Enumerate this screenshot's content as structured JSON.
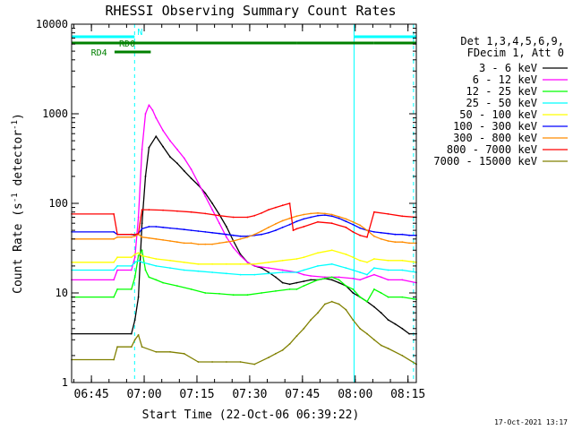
{
  "chart_data": {
    "type": "line",
    "title": "RHESSI Observing Summary Count Rates",
    "xlabel": "Start Time (22-Oct-06 06:39:22)",
    "ylabel": "Count Rate (s⁻¹ detector⁻¹)",
    "ylabel_parts": {
      "a": "Count Rate (s",
      "b": "-1",
      "c": " detector",
      "d": "-1",
      "e": ")"
    },
    "y_scale": "log",
    "ylim": [
      1,
      10000
    ],
    "xlim_minutes": [
      0,
      98
    ],
    "x_tick_labels": [
      "06:45",
      "07:00",
      "07:15",
      "07:30",
      "07:45",
      "08:00",
      "08:15"
    ],
    "x_tick_minutes": [
      5.63,
      20.63,
      35.63,
      50.63,
      65.63,
      80.63,
      95.63
    ],
    "y_tick_labels": [
      "1",
      "10",
      "100",
      "1000",
      "10000"
    ],
    "y_tick_values": [
      1,
      10,
      100,
      1000,
      10000
    ],
    "legend_header": [
      "Det 1,3,4,5,6,9,",
      "FDecim 1, Att 0"
    ],
    "legend_placement": "right",
    "series": [
      {
        "name": "3 - 6 keV",
        "color": "#000000",
        "x": [
          0,
          17,
          18,
          19,
          20,
          21,
          22,
          24,
          26,
          28,
          30,
          32,
          34,
          36,
          38,
          40,
          42,
          44,
          46,
          48,
          50,
          52,
          54,
          56,
          58,
          60,
          62,
          64,
          66,
          68,
          70,
          72,
          74,
          76,
          78,
          80,
          82,
          84,
          86,
          88,
          90,
          92,
          94,
          96,
          98
        ],
        "y": [
          3.5,
          3.5,
          5,
          9,
          60,
          200,
          420,
          560,
          430,
          330,
          280,
          230,
          190,
          160,
          130,
          100,
          75,
          55,
          38,
          27,
          22,
          20,
          19,
          17,
          15,
          13,
          12.5,
          13,
          13.5,
          14,
          14,
          14.5,
          14,
          13,
          12,
          10,
          9,
          8,
          7,
          6,
          5,
          4.5,
          4,
          3.5,
          3.5
        ]
      },
      {
        "name": "6 - 12 keV",
        "color": "#ff00ff",
        "x": [
          0,
          12,
          13,
          17,
          18,
          19,
          20,
          21,
          22,
          23,
          24,
          26,
          28,
          30,
          32,
          34,
          36,
          38,
          40,
          42,
          44,
          46,
          48,
          50,
          52,
          56,
          60,
          64,
          66,
          68,
          72,
          76,
          80,
          82,
          84,
          86,
          88,
          90,
          94,
          98
        ],
        "y": [
          14,
          14,
          18,
          18,
          25,
          70,
          400,
          1000,
          1250,
          1100,
          900,
          650,
          500,
          400,
          320,
          240,
          170,
          120,
          85,
          60,
          42,
          32,
          26,
          22,
          20,
          19,
          18,
          17,
          16,
          15.5,
          15,
          15,
          14.5,
          14,
          15,
          16,
          15,
          14,
          14,
          13
        ]
      },
      {
        "name": "12 - 25 keV",
        "color": "#00ff00",
        "x": [
          0,
          12,
          13,
          17,
          18,
          19,
          20,
          21,
          22,
          24,
          26,
          30,
          34,
          38,
          42,
          46,
          50,
          54,
          58,
          62,
          64,
          66,
          70,
          74,
          76,
          78,
          80,
          82,
          84,
          86,
          88,
          90,
          94,
          98
        ],
        "y": [
          9,
          9,
          11,
          11,
          15,
          26,
          30,
          18,
          15,
          14,
          13,
          12,
          11,
          10,
          9.8,
          9.5,
          9.5,
          10,
          10.5,
          11,
          11,
          12,
          14,
          15,
          14,
          12,
          11,
          9,
          8,
          11,
          10,
          9,
          9,
          8.5
        ]
      },
      {
        "name": "25 - 50 keV",
        "color": "#00ffff",
        "x": [
          0,
          12,
          13,
          17,
          18,
          19,
          20,
          22,
          24,
          28,
          32,
          36,
          40,
          44,
          48,
          52,
          56,
          60,
          64,
          66,
          70,
          74,
          78,
          80,
          82,
          84,
          86,
          90,
          94,
          98
        ],
        "y": [
          18,
          18,
          20,
          20,
          22,
          23,
          22,
          21,
          20,
          19,
          18,
          17.5,
          17,
          16.5,
          16,
          16,
          16.5,
          17,
          17,
          18,
          20,
          21,
          19,
          18,
          17,
          16,
          19,
          18,
          18,
          17
        ]
      },
      {
        "name": "50 - 100 keV",
        "color": "#ffff00",
        "x": [
          0,
          12,
          13,
          17,
          18,
          19,
          20,
          22,
          24,
          28,
          32,
          36,
          40,
          44,
          48,
          52,
          56,
          60,
          64,
          66,
          70,
          74,
          78,
          80,
          82,
          84,
          86,
          90,
          94,
          98
        ],
        "y": [
          22,
          22,
          25,
          25,
          27,
          28,
          26,
          25,
          24,
          23,
          22,
          21,
          21,
          21,
          21,
          21,
          22,
          23,
          24,
          25,
          28,
          30,
          27,
          25,
          23,
          22,
          24,
          23,
          23,
          22
        ]
      },
      {
        "name": "100 - 300 keV",
        "color": "#0000ff",
        "x": [
          0,
          12,
          13,
          17,
          18,
          19,
          20,
          22,
          24,
          26,
          28,
          30,
          32,
          34,
          36,
          38,
          40,
          42,
          44,
          46,
          48,
          50,
          52,
          54,
          56,
          58,
          60,
          62,
          64,
          66,
          68,
          70,
          72,
          74,
          76,
          78,
          80,
          82,
          84,
          86,
          88,
          90,
          92,
          94,
          96,
          98
        ],
        "y": [
          48,
          48,
          45,
          45,
          44,
          46,
          52,
          55,
          55,
          54,
          53,
          52,
          51,
          50,
          49,
          48,
          47,
          46,
          45,
          44,
          43,
          43,
          44,
          45,
          47,
          50,
          54,
          58,
          63,
          67,
          70,
          73,
          74,
          72,
          68,
          63,
          58,
          53,
          50,
          48,
          47,
          46,
          45,
          45,
          44,
          44
        ]
      },
      {
        "name": "300 - 800 keV",
        "color": "#ff8c00",
        "x": [
          0,
          12,
          13,
          17,
          18,
          19,
          20,
          22,
          24,
          26,
          28,
          30,
          32,
          34,
          36,
          38,
          40,
          42,
          44,
          46,
          48,
          50,
          52,
          54,
          56,
          58,
          60,
          62,
          64,
          66,
          68,
          70,
          72,
          74,
          76,
          78,
          80,
          82,
          84,
          86,
          88,
          90,
          92,
          94,
          96,
          98
        ],
        "y": [
          40,
          40,
          42,
          42,
          43,
          45,
          42,
          41,
          40,
          39,
          38,
          37,
          36,
          36,
          35,
          35,
          35,
          36,
          37,
          38,
          40,
          42,
          45,
          49,
          54,
          59,
          64,
          68,
          72,
          75,
          77,
          78,
          77,
          75,
          71,
          67,
          62,
          57,
          50,
          43,
          40,
          38,
          37,
          37,
          36,
          36
        ]
      },
      {
        "name": "800 - 7000 keV",
        "color": "#ff0000",
        "x": [
          0,
          12,
          13,
          17,
          18,
          19,
          20,
          22,
          26,
          30,
          34,
          38,
          42,
          46,
          50,
          52,
          54,
          56,
          58,
          60,
          62,
          63,
          64,
          66,
          70,
          74,
          78,
          80,
          82,
          84,
          86,
          90,
          94,
          98
        ],
        "y": [
          76,
          76,
          45,
          45,
          45,
          46,
          85,
          85,
          84,
          82,
          80,
          77,
          73,
          70,
          70,
          73,
          78,
          85,
          90,
          95,
          100,
          50,
          52,
          55,
          62,
          60,
          54,
          48,
          44,
          42,
          80,
          76,
          72,
          70
        ]
      },
      {
        "name": "7000 - 15000 keV",
        "color": "#808000",
        "x": [
          0,
          12,
          13,
          17,
          18,
          19,
          20,
          24,
          28,
          32,
          36,
          40,
          44,
          48,
          52,
          56,
          58,
          60,
          62,
          64,
          66,
          68,
          70,
          72,
          74,
          76,
          78,
          80,
          82,
          84,
          86,
          88,
          90,
          94,
          98
        ],
        "y": [
          1.8,
          1.8,
          2.5,
          2.5,
          3,
          3.4,
          2.5,
          2.2,
          2.2,
          2.1,
          1.7,
          1.7,
          1.7,
          1.7,
          1.6,
          1.9,
          2.1,
          2.3,
          2.7,
          3.3,
          4,
          5,
          6,
          7.5,
          8,
          7.5,
          6.5,
          5,
          4,
          3.5,
          3,
          2.6,
          2.4,
          2,
          1.6
        ]
      }
    ],
    "annotations": {
      "vertical_solid_minutes": [
        0,
        80.3
      ],
      "vertical_dashed_minutes": [
        17.9,
        97.2
      ],
      "bars": [
        {
          "label": "N",
          "color": "#00ffff",
          "segments": [
            [
              0,
              17.9
            ],
            [
              80.3,
              98
            ]
          ]
        },
        {
          "label": "RD0",
          "color": "#008000",
          "segments": [
            [
              0,
              64
            ],
            [
              64,
              86
            ],
            [
              86,
              98
            ]
          ]
        },
        {
          "label": "RD4",
          "color": "#008000",
          "segments": [
            [
              12.2,
              22.5
            ]
          ]
        }
      ]
    },
    "grid": false
  },
  "footer": {
    "timestamp": "17-Oct-2021 13:17"
  }
}
